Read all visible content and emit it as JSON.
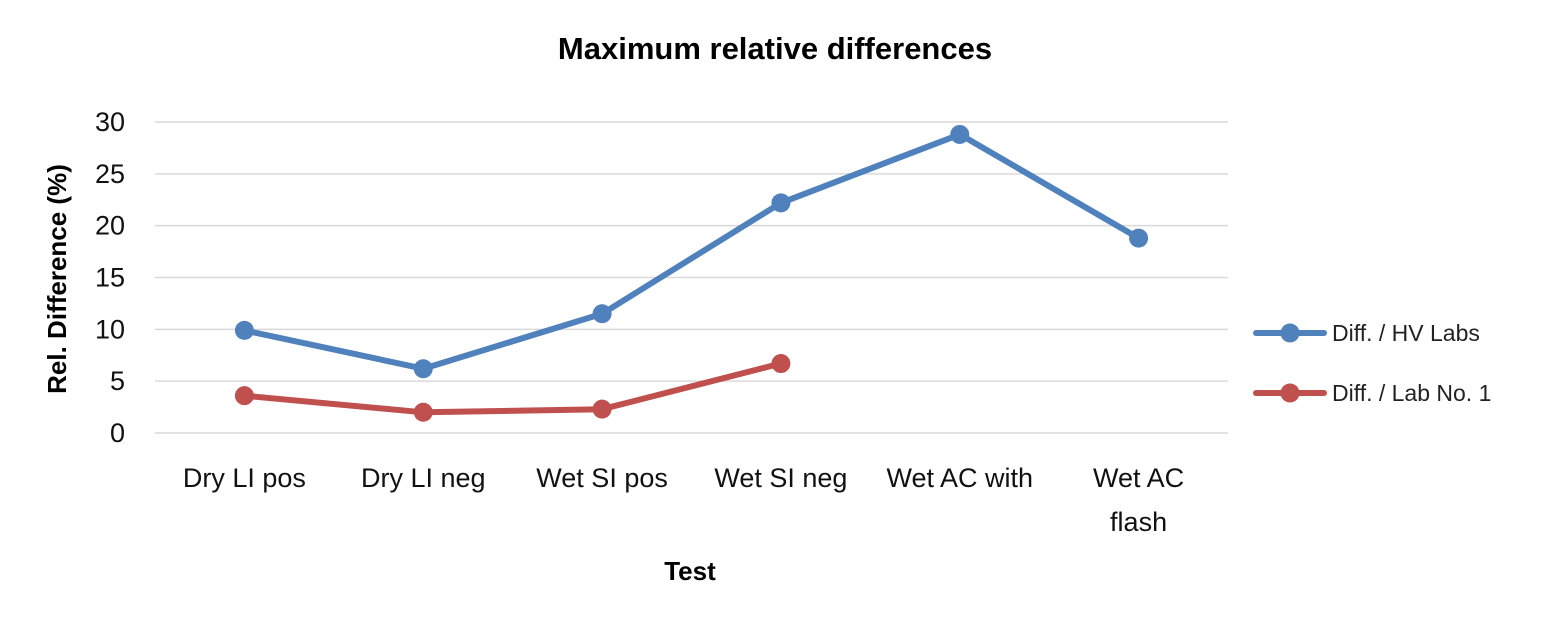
{
  "chart_data": {
    "type": "line",
    "title": "Maximum relative differences",
    "xlabel": "Test",
    "ylabel": "Rel. Difference (%)",
    "ylim": [
      0,
      30
    ],
    "yticks": [
      0,
      5,
      10,
      15,
      20,
      25,
      30
    ],
    "grid": true,
    "legend_position": "right",
    "categories": [
      [
        "Dry LI pos"
      ],
      [
        "Dry LI neg"
      ],
      [
        "Wet SI pos"
      ],
      [
        "Wet SI neg"
      ],
      [
        "Wet AC with"
      ],
      [
        "Wet AC",
        "flash"
      ]
    ],
    "series": [
      {
        "name": "Diff. / HV Labs",
        "color": "#4f81bd",
        "values": [
          9.9,
          6.2,
          11.5,
          22.2,
          28.8,
          18.8
        ]
      },
      {
        "name": "Diff. / Lab No. 1",
        "color": "#c0504d",
        "values": [
          3.6,
          2.0,
          2.3,
          6.7,
          null,
          null
        ]
      }
    ]
  }
}
